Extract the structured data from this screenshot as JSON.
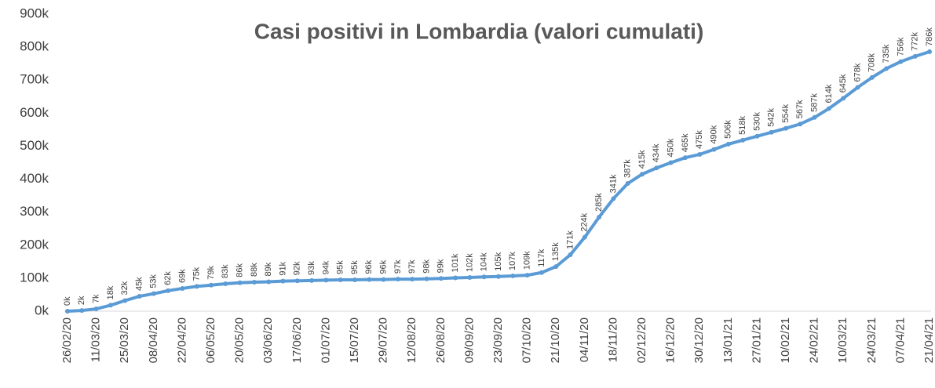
{
  "chart_data": {
    "type": "line",
    "title": "Casi positivi in Lombardia (valori cumulati)",
    "categories": [
      "26/02/20",
      null,
      "11/03/20",
      null,
      "25/03/20",
      null,
      "08/04/20",
      null,
      "22/04/20",
      null,
      "06/05/20",
      null,
      "20/05/20",
      null,
      "03/06/20",
      null,
      "17/06/20",
      null,
      "01/07/20",
      null,
      "15/07/20",
      null,
      "29/07/20",
      null,
      "12/08/20",
      null,
      "26/08/20",
      null,
      "09/09/20",
      null,
      "23/09/20",
      null,
      "07/10/20",
      null,
      "21/10/20",
      null,
      "04/11/20",
      null,
      "18/11/20",
      null,
      "02/12/20",
      null,
      "16/12/20",
      null,
      "30/12/20",
      null,
      "13/01/21",
      null,
      "27/01/21",
      null,
      "10/02/21",
      null,
      "24/02/21",
      null,
      "10/03/21",
      null,
      "24/03/21",
      null,
      "07/04/21",
      null,
      "21/04/21"
    ],
    "series": [
      {
        "color": "#5b9bd5",
        "values": [
          0,
          2000,
          7000,
          18000,
          32000,
          45000,
          53000,
          62000,
          69000,
          75000,
          79000,
          83000,
          86000,
          88000,
          89000,
          91000,
          92000,
          93000,
          94000,
          95000,
          95000,
          96000,
          96000,
          97000,
          97000,
          98000,
          99000,
          101000,
          102000,
          104000,
          105000,
          107000,
          109000,
          117000,
          135000,
          171000,
          224000,
          285000,
          341000,
          387000,
          415000,
          434000,
          450000,
          465000,
          475000,
          490000,
          506000,
          518000,
          530000,
          542000,
          554000,
          567000,
          587000,
          614000,
          645000,
          678000,
          708000,
          735000,
          756000,
          772000,
          786000
        ],
        "value_labels": [
          "0k",
          "2k",
          "7k",
          "18k",
          "32k",
          "45k",
          "53k",
          "62k",
          "69k",
          "75k",
          "79k",
          "83k",
          "86k",
          "88k",
          "89k",
          "91k",
          "92k",
          "93k",
          "94k",
          "95k",
          "95k",
          "96k",
          "96k",
          "97k",
          "97k",
          "98k",
          "99k",
          "101k",
          "102k",
          "104k",
          "105k",
          "107k",
          "109k",
          "117k",
          "135k",
          "171k",
          "224k",
          "285k",
          "341k",
          "387k",
          "415k",
          "434k",
          "450k",
          "465k",
          "475k",
          "490k",
          "506k",
          "518k",
          "530k",
          "542k",
          "554k",
          "567k",
          "587k",
          "614k",
          "645k",
          "678k",
          "708k",
          "735k",
          "756k",
          "772k",
          "786k"
        ]
      }
    ],
    "ylim": [
      0,
      900000
    ],
    "yticks": [
      {
        "value": 0,
        "label": "0k"
      },
      {
        "value": 100000,
        "label": "100k"
      },
      {
        "value": 200000,
        "label": "200k"
      },
      {
        "value": 300000,
        "label": "300k"
      },
      {
        "value": 400000,
        "label": "400k"
      },
      {
        "value": 500000,
        "label": "500k"
      },
      {
        "value": 600000,
        "label": "600k"
      },
      {
        "value": 700000,
        "label": "700k"
      },
      {
        "value": 800000,
        "label": "800k"
      },
      {
        "value": 900000,
        "label": "900k"
      }
    ]
  }
}
